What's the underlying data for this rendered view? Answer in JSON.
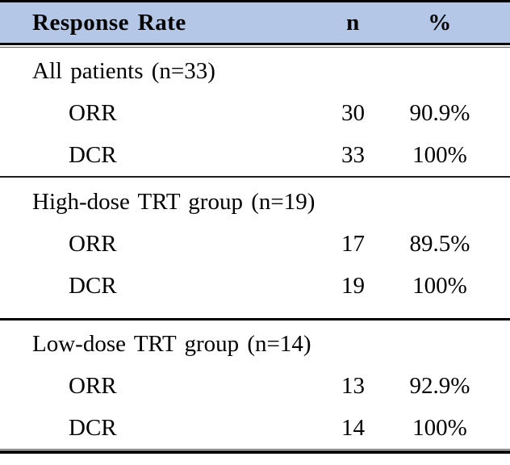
{
  "table": {
    "header": {
      "col1": "Response Rate",
      "col2": "n",
      "col3": "%"
    },
    "sections": [
      {
        "group_label": "All patients (n=33)",
        "rows": [
          {
            "label": "ORR",
            "n": "30",
            "pct": "90.9%"
          },
          {
            "label": "DCR",
            "n": "33",
            "pct": "100%"
          }
        ]
      },
      {
        "group_label": "High-dose TRT group (n=19)",
        "rows": [
          {
            "label": "ORR",
            "n": "17",
            "pct": "89.5%"
          },
          {
            "label": "DCR",
            "n": "19",
            "pct": "100%"
          }
        ]
      },
      {
        "group_label": "Low-dose TRT group (n=14)",
        "rows": [
          {
            "label": "ORR",
            "n": "13",
            "pct": "92.9%"
          },
          {
            "label": "DCR",
            "n": "14",
            "pct": "100%"
          }
        ]
      }
    ],
    "colors": {
      "header_bg": "#b4c7e7",
      "border": "#000000",
      "thin_line": "#4d4d4d",
      "text": "#000000"
    }
  }
}
